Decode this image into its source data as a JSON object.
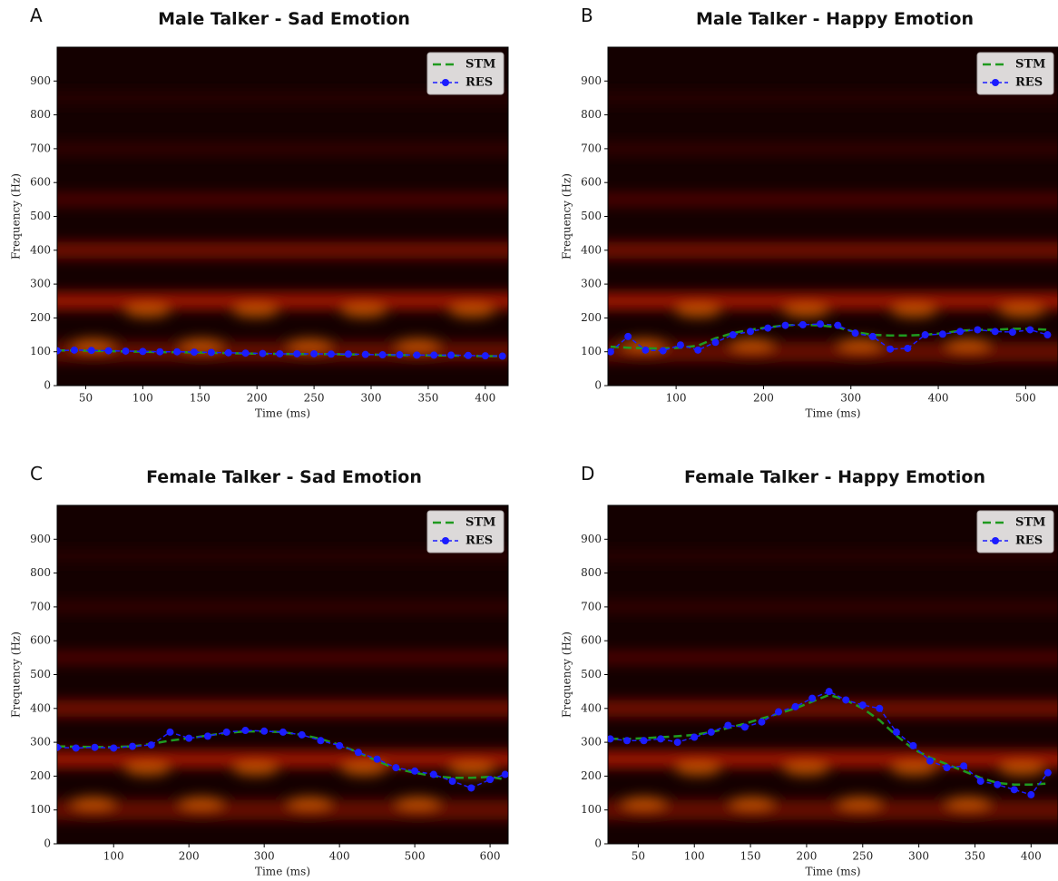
{
  "chart_data": [
    {
      "type": "line",
      "panel_label": "A",
      "title": "Male Talker - Sad Emotion",
      "xlabel": "Time (ms)",
      "ylabel": "Frequency (Hz)",
      "x": [
        25,
        40,
        55,
        70,
        85,
        100,
        115,
        130,
        145,
        160,
        175,
        190,
        205,
        220,
        235,
        250,
        265,
        280,
        295,
        310,
        325,
        340,
        355,
        370,
        385,
        400,
        415
      ],
      "series": [
        {
          "name": "STM",
          "color": "#1f9a1f",
          "values": [
            104,
            104,
            103,
            102,
            101,
            100,
            99,
            99,
            98,
            97,
            96,
            95,
            94,
            94,
            93,
            93,
            93,
            92,
            92,
            91,
            90,
            90,
            89,
            89,
            88,
            87,
            87
          ]
        },
        {
          "name": "RES",
          "color": "#1c1cff",
          "values": [
            103,
            105,
            104,
            103,
            102,
            101,
            100,
            100,
            99,
            98,
            97,
            96,
            95,
            94,
            94,
            94,
            93,
            93,
            92,
            91,
            91,
            90,
            90,
            90,
            89,
            88,
            87
          ]
        }
      ],
      "xlim": [
        25,
        420
      ],
      "ylim": [
        0,
        1000
      ],
      "xticks": [
        50,
        100,
        150,
        200,
        250,
        300,
        350,
        400
      ],
      "yticks": [
        0,
        100,
        200,
        300,
        400,
        500,
        600,
        700,
        800,
        900
      ],
      "legend": "upper right"
    },
    {
      "type": "line",
      "panel_label": "B",
      "title": "Male Talker - Happy Emotion",
      "xlabel": "Time (ms)",
      "ylabel": "Frequency (Hz)",
      "x": [
        25,
        45,
        65,
        85,
        105,
        125,
        145,
        165,
        185,
        205,
        225,
        245,
        265,
        285,
        305,
        325,
        345,
        365,
        385,
        405,
        425,
        445,
        465,
        485,
        505,
        525
      ],
      "series": [
        {
          "name": "STM",
          "color": "#1f9a1f",
          "values": [
            115,
            112,
            110,
            110,
            112,
            118,
            140,
            155,
            165,
            172,
            178,
            180,
            178,
            172,
            158,
            150,
            148,
            148,
            150,
            155,
            162,
            165,
            165,
            168,
            168,
            165
          ]
        },
        {
          "name": "RES",
          "color": "#1c1cff",
          "values": [
            100,
            145,
            105,
            103,
            120,
            105,
            128,
            150,
            160,
            170,
            178,
            180,
            182,
            178,
            155,
            145,
            108,
            110,
            150,
            152,
            160,
            165,
            160,
            158,
            165,
            150
          ]
        }
      ],
      "xlim": [
        22,
        537
      ],
      "ylim": [
        0,
        1000
      ],
      "xticks": [
        100,
        200,
        300,
        400,
        500
      ],
      "yticks": [
        0,
        100,
        200,
        300,
        400,
        500,
        600,
        700,
        800,
        900
      ],
      "legend": "upper right"
    },
    {
      "type": "line",
      "panel_label": "C",
      "title": "Female Talker - Sad Emotion",
      "xlabel": "Time (ms)",
      "ylabel": "Frequency (Hz)",
      "x": [
        25,
        50,
        75,
        100,
        125,
        150,
        175,
        200,
        225,
        250,
        275,
        300,
        325,
        350,
        375,
        400,
        425,
        450,
        475,
        500,
        525,
        550,
        575,
        600,
        620
      ],
      "series": [
        {
          "name": "STM",
          "color": "#1f9a1f",
          "values": [
            288,
            287,
            286,
            286,
            288,
            295,
            305,
            312,
            320,
            328,
            332,
            332,
            330,
            322,
            310,
            292,
            270,
            245,
            222,
            210,
            200,
            195,
            195,
            198,
            190
          ]
        },
        {
          "name": "RES",
          "color": "#1c1cff",
          "values": [
            285,
            283,
            285,
            283,
            288,
            292,
            330,
            312,
            318,
            330,
            335,
            333,
            330,
            322,
            305,
            290,
            270,
            250,
            225,
            215,
            205,
            185,
            165,
            190,
            205
          ]
        }
      ],
      "xlim": [
        25,
        624
      ],
      "ylim": [
        0,
        1000
      ],
      "xticks": [
        100,
        200,
        300,
        400,
        500,
        600
      ],
      "yticks": [
        0,
        100,
        200,
        300,
        400,
        500,
        600,
        700,
        800,
        900
      ],
      "legend": "upper right"
    },
    {
      "type": "line",
      "panel_label": "D",
      "title": "Female Talker - Happy Emotion",
      "xlabel": "Time (ms)",
      "ylabel": "Frequency (Hz)",
      "x": [
        25,
        40,
        55,
        70,
        85,
        100,
        115,
        130,
        145,
        160,
        175,
        190,
        205,
        220,
        235,
        250,
        265,
        280,
        295,
        310,
        325,
        340,
        355,
        370,
        385,
        400,
        415
      ],
      "series": [
        {
          "name": "STM",
          "color": "#1f9a1f",
          "values": [
            310,
            310,
            312,
            315,
            318,
            322,
            330,
            342,
            355,
            370,
            385,
            400,
            420,
            440,
            425,
            400,
            365,
            320,
            280,
            255,
            235,
            215,
            195,
            180,
            175,
            175,
            178
          ]
        },
        {
          "name": "RES",
          "color": "#1c1cff",
          "values": [
            310,
            305,
            305,
            310,
            300,
            315,
            330,
            350,
            345,
            360,
            390,
            405,
            430,
            450,
            425,
            410,
            400,
            330,
            290,
            245,
            225,
            230,
            185,
            175,
            160,
            145,
            210
          ]
        }
      ],
      "xlim": [
        23,
        424
      ],
      "ylim": [
        0,
        1000
      ],
      "xticks": [
        50,
        100,
        150,
        200,
        250,
        300,
        350,
        400
      ],
      "yticks": [
        0,
        100,
        200,
        300,
        400,
        500,
        600,
        700,
        800,
        900
      ],
      "legend": "upper right"
    }
  ]
}
